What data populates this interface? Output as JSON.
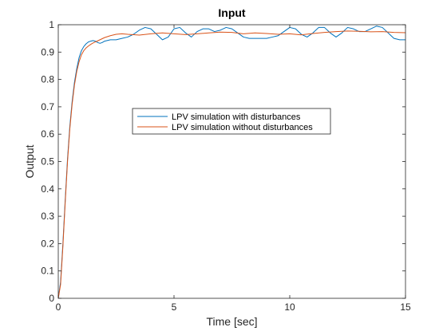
{
  "chart_data": {
    "type": "line",
    "title": "Input",
    "xlabel": "Time [sec]",
    "ylabel": "Output",
    "xlim": [
      0,
      15
    ],
    "ylim": [
      0,
      1
    ],
    "xticks": [
      0,
      5,
      10,
      15
    ],
    "xtick_labels": [
      "0",
      "5",
      "10",
      "15"
    ],
    "yticks": [
      0,
      0.1,
      0.2,
      0.3,
      0.4,
      0.5,
      0.6,
      0.7,
      0.8,
      0.9,
      1
    ],
    "ytick_labels": [
      "0",
      "0.1",
      "0.2",
      "0.3",
      "0.4",
      "0.5",
      "0.6",
      "0.7",
      "0.8",
      "0.9",
      "1"
    ],
    "grid": false,
    "legend_position": "center-left",
    "series": [
      {
        "name": "LPV simulation with disturbances",
        "color": "#0072BD",
        "x": [
          0,
          0.1,
          0.2,
          0.3,
          0.4,
          0.5,
          0.6,
          0.7,
          0.8,
          0.9,
          1.0,
          1.1,
          1.2,
          1.3,
          1.4,
          1.5,
          1.6,
          1.7,
          1.8,
          1.9,
          2.0,
          2.25,
          2.5,
          2.75,
          3.0,
          3.25,
          3.5,
          3.75,
          4.0,
          4.25,
          4.5,
          4.75,
          5.0,
          5.25,
          5.5,
          5.75,
          6.0,
          6.25,
          6.5,
          6.75,
          7.0,
          7.25,
          7.5,
          7.75,
          8.0,
          8.25,
          8.5,
          8.75,
          9.0,
          9.25,
          9.5,
          9.75,
          10.0,
          10.25,
          10.5,
          10.75,
          11.0,
          11.25,
          11.5,
          11.75,
          12.0,
          12.25,
          12.5,
          12.75,
          13.0,
          13.25,
          13.5,
          13.75,
          14.0,
          14.25,
          14.5,
          14.75,
          15.0
        ],
        "y": [
          0,
          0.06,
          0.2,
          0.36,
          0.51,
          0.63,
          0.72,
          0.79,
          0.84,
          0.88,
          0.905,
          0.92,
          0.93,
          0.937,
          0.94,
          0.942,
          0.94,
          0.935,
          0.932,
          0.935,
          0.94,
          0.945,
          0.945,
          0.95,
          0.955,
          0.965,
          0.98,
          0.99,
          0.985,
          0.965,
          0.945,
          0.955,
          0.985,
          0.99,
          0.97,
          0.955,
          0.975,
          0.985,
          0.985,
          0.975,
          0.98,
          0.99,
          0.985,
          0.97,
          0.955,
          0.95,
          0.95,
          0.95,
          0.95,
          0.955,
          0.96,
          0.975,
          0.99,
          0.985,
          0.965,
          0.955,
          0.97,
          0.99,
          0.99,
          0.97,
          0.955,
          0.97,
          0.99,
          0.985,
          0.975,
          0.975,
          0.985,
          0.995,
          0.99,
          0.97,
          0.95,
          0.945,
          0.945
        ]
      },
      {
        "name": "LPV simulation without disturbances",
        "color": "#D95319",
        "x": [
          0,
          0.1,
          0.2,
          0.3,
          0.4,
          0.5,
          0.6,
          0.7,
          0.8,
          0.9,
          1.0,
          1.1,
          1.2,
          1.3,
          1.4,
          1.5,
          1.6,
          1.7,
          1.8,
          1.9,
          2.0,
          2.25,
          2.5,
          2.75,
          3.0,
          3.5,
          4.0,
          4.5,
          5.0,
          5.5,
          6.0,
          6.5,
          7.0,
          7.5,
          8.0,
          8.5,
          9.0,
          9.5,
          10.0,
          10.5,
          11.0,
          11.5,
          12.0,
          12.5,
          13.0,
          13.5,
          14.0,
          14.5,
          15.0
        ],
        "y": [
          0,
          0.05,
          0.19,
          0.35,
          0.5,
          0.62,
          0.71,
          0.78,
          0.83,
          0.865,
          0.89,
          0.905,
          0.915,
          0.922,
          0.928,
          0.933,
          0.937,
          0.941,
          0.945,
          0.949,
          0.953,
          0.96,
          0.965,
          0.967,
          0.965,
          0.962,
          0.967,
          0.97,
          0.967,
          0.964,
          0.967,
          0.97,
          0.973,
          0.972,
          0.967,
          0.97,
          0.968,
          0.965,
          0.967,
          0.963,
          0.968,
          0.972,
          0.975,
          0.977,
          0.976,
          0.974,
          0.975,
          0.972,
          0.971
        ]
      }
    ]
  }
}
